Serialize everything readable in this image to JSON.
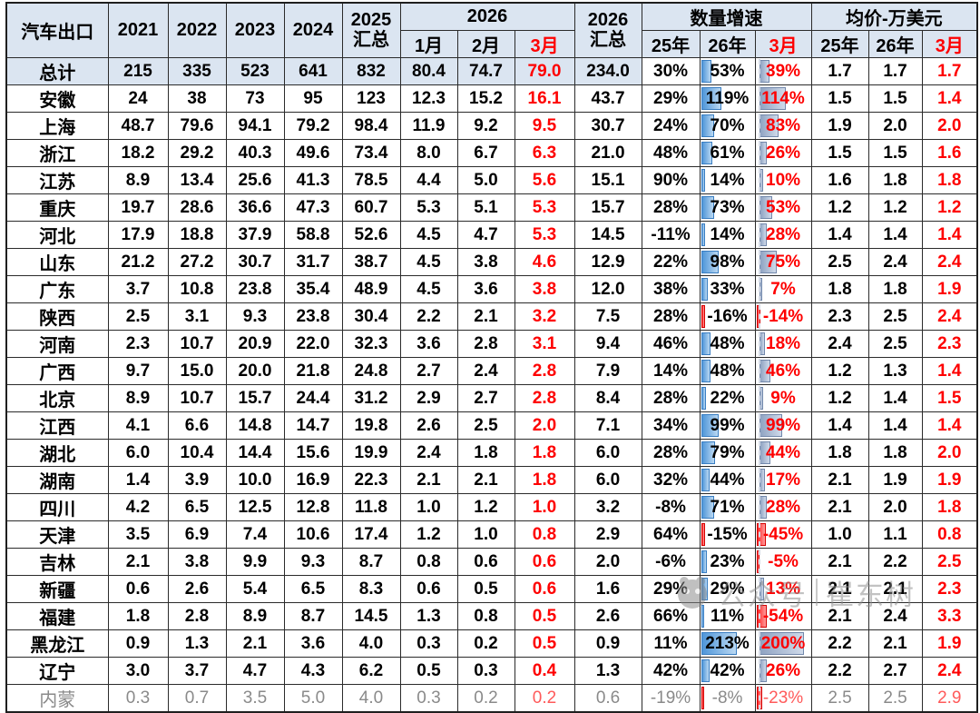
{
  "header": {
    "title": "汽车出口",
    "years": [
      "2021",
      "2022",
      "2023",
      "2024"
    ],
    "total2025": [
      "2025",
      "汇总"
    ],
    "group2026": "2026",
    "months": [
      "1月",
      "2月",
      "3月"
    ],
    "total2026": [
      "2026",
      "汇总"
    ],
    "growth_group": "数量增速",
    "growth_cols": [
      "25年",
      "26年",
      "3月"
    ],
    "price_group": "均价-万美元",
    "price_cols": [
      "25年",
      "26年",
      "3月"
    ]
  },
  "colors": {
    "header_bg": "#dbe5f1",
    "red_text": "#fe0000",
    "bar_blue": "#4f96d9",
    "bar_gray_blue": "#8fa3c2",
    "bar_negative_red": "#ff2525",
    "dim_text": "#8a8a8a"
  },
  "watermark": {
    "label1": "公众号",
    "label2": "崔东树"
  },
  "chart_data": {
    "type": "table",
    "title": "汽车出口",
    "columns": [
      "汽车出口",
      "2021",
      "2022",
      "2023",
      "2024",
      "2025汇总",
      "2026-1月",
      "2026-2月",
      "2026-3月",
      "2026汇总",
      "数量增速25年",
      "数量增速26年",
      "数量增速3月",
      "均价25年",
      "均价26年",
      "均价3月"
    ],
    "bar_columns": {
      "growth26_index": 11,
      "growth3_index": 12,
      "growth26_max": 213,
      "growth3_max": 200
    },
    "rows": [
      {
        "name": "总计",
        "highlight": true,
        "v": [
          "215",
          "335",
          "523",
          "641",
          "832",
          "80.4",
          "74.7",
          "79.0",
          "234.0",
          "30%",
          "53%",
          "39%",
          "1.7",
          "1.7",
          "1.7"
        ]
      },
      {
        "name": "安徽",
        "v": [
          "24",
          "38",
          "73",
          "95",
          "123",
          "12.3",
          "15.2",
          "16.1",
          "43.7",
          "29%",
          "119%",
          "114%",
          "1.5",
          "1.5",
          "1.4"
        ]
      },
      {
        "name": "上海",
        "v": [
          "48.7",
          "79.6",
          "94.1",
          "79.2",
          "98.4",
          "11.9",
          "9.2",
          "9.5",
          "30.7",
          "24%",
          "70%",
          "83%",
          "1.9",
          "2.0",
          "2.0"
        ]
      },
      {
        "name": "浙江",
        "v": [
          "18.2",
          "29.2",
          "40.3",
          "49.6",
          "73.4",
          "8.0",
          "6.7",
          "6.3",
          "21.0",
          "48%",
          "61%",
          "26%",
          "1.5",
          "1.5",
          "1.6"
        ]
      },
      {
        "name": "江苏",
        "v": [
          "8.9",
          "13.4",
          "25.6",
          "41.3",
          "78.5",
          "4.4",
          "5.0",
          "5.6",
          "15.1",
          "90%",
          "14%",
          "10%",
          "1.6",
          "1.8",
          "1.8"
        ]
      },
      {
        "name": "重庆",
        "v": [
          "19.7",
          "28.6",
          "36.6",
          "47.3",
          "60.7",
          "5.3",
          "5.1",
          "5.3",
          "15.7",
          "28%",
          "73%",
          "53%",
          "1.2",
          "1.2",
          "1.2"
        ]
      },
      {
        "name": "河北",
        "v": [
          "17.9",
          "18.8",
          "37.9",
          "58.8",
          "52.6",
          "4.5",
          "4.7",
          "5.3",
          "14.5",
          "-11%",
          "14%",
          "28%",
          "1.4",
          "1.4",
          "1.4"
        ]
      },
      {
        "name": "山东",
        "v": [
          "21.2",
          "27.2",
          "30.7",
          "31.7",
          "38.7",
          "4.5",
          "3.8",
          "4.6",
          "12.9",
          "22%",
          "98%",
          "75%",
          "2.5",
          "2.4",
          "2.4"
        ]
      },
      {
        "name": "广东",
        "v": [
          "3.7",
          "10.8",
          "23.8",
          "35.4",
          "48.9",
          "4.5",
          "3.6",
          "3.8",
          "12.0",
          "38%",
          "33%",
          "7%",
          "1.8",
          "1.8",
          "1.9"
        ]
      },
      {
        "name": "陕西",
        "v": [
          "2.5",
          "3.1",
          "9.3",
          "23.8",
          "30.4",
          "2.2",
          "2.1",
          "3.2",
          "7.5",
          "28%",
          "-16%",
          "-14%",
          "2.3",
          "2.5",
          "2.4"
        ]
      },
      {
        "name": "河南",
        "v": [
          "2.3",
          "10.7",
          "20.9",
          "22.0",
          "32.3",
          "3.6",
          "2.8",
          "3.1",
          "9.4",
          "46%",
          "48%",
          "18%",
          "2.4",
          "2.5",
          "2.3"
        ]
      },
      {
        "name": "广西",
        "v": [
          "9.7",
          "15.0",
          "20.0",
          "21.8",
          "24.8",
          "2.7",
          "2.4",
          "2.8",
          "7.9",
          "14%",
          "48%",
          "46%",
          "1.2",
          "1.3",
          "1.4"
        ]
      },
      {
        "name": "北京",
        "v": [
          "8.9",
          "10.7",
          "15.7",
          "24.4",
          "31.2",
          "2.9",
          "2.7",
          "2.8",
          "8.4",
          "28%",
          "22%",
          "9%",
          "1.2",
          "1.4",
          "1.5"
        ]
      },
      {
        "name": "江西",
        "v": [
          "4.1",
          "6.6",
          "14.8",
          "14.7",
          "19.8",
          "2.6",
          "2.5",
          "2.0",
          "7.1",
          "34%",
          "99%",
          "99%",
          "1.4",
          "1.4",
          "1.4"
        ]
      },
      {
        "name": "湖北",
        "v": [
          "6.0",
          "10.4",
          "14.4",
          "15.6",
          "19.9",
          "2.4",
          "1.8",
          "1.8",
          "6.0",
          "28%",
          "79%",
          "44%",
          "1.8",
          "1.8",
          "2.0"
        ]
      },
      {
        "name": "湖南",
        "v": [
          "1.4",
          "3.9",
          "10.0",
          "16.9",
          "22.3",
          "2.1",
          "2.1",
          "1.8",
          "6.0",
          "32%",
          "44%",
          "17%",
          "2.1",
          "1.9",
          "1.9"
        ]
      },
      {
        "name": "四川",
        "v": [
          "4.2",
          "6.5",
          "12.5",
          "12.8",
          "11.8",
          "1.0",
          "1.2",
          "1.0",
          "3.2",
          "-8%",
          "71%",
          "28%",
          "2.1",
          "2.0",
          "1.8"
        ]
      },
      {
        "name": "天津",
        "v": [
          "3.5",
          "6.9",
          "7.4",
          "10.6",
          "17.4",
          "1.2",
          "1.0",
          "0.8",
          "2.9",
          "64%",
          "-15%",
          "-45%",
          "1.0",
          "1.1",
          "0.8"
        ]
      },
      {
        "name": "吉林",
        "v": [
          "2.1",
          "3.8",
          "9.9",
          "9.3",
          "8.7",
          "0.8",
          "0.6",
          "0.6",
          "2.0",
          "-6%",
          "23%",
          "-5%",
          "2.1",
          "2.2",
          "2.5"
        ]
      },
      {
        "name": "新疆",
        "v": [
          "0.6",
          "2.6",
          "5.4",
          "6.5",
          "8.3",
          "0.6",
          "0.5",
          "0.6",
          "1.6",
          "29%",
          "29%",
          "13%",
          "2.1",
          "2.1",
          "2.3"
        ]
      },
      {
        "name": "福建",
        "v": [
          "1.8",
          "2.8",
          "8.9",
          "8.7",
          "14.5",
          "1.3",
          "0.8",
          "0.5",
          "2.6",
          "66%",
          "11%",
          "-54%",
          "2.1",
          "2.4",
          "3.3"
        ]
      },
      {
        "name": "黑龙江",
        "v": [
          "0.9",
          "1.3",
          "2.1",
          "3.6",
          "4.0",
          "0.3",
          "0.2",
          "0.5",
          "0.9",
          "11%",
          "213%",
          "200%",
          "2.2",
          "2.1",
          "1.9"
        ]
      },
      {
        "name": "辽宁",
        "v": [
          "3.0",
          "3.7",
          "4.7",
          "4.3",
          "6.2",
          "0.5",
          "0.3",
          "0.4",
          "1.3",
          "42%",
          "42%",
          "26%",
          "2.2",
          "2.7",
          "2.4"
        ]
      },
      {
        "name": "内蒙",
        "dim": true,
        "v": [
          "0.3",
          "0.7",
          "3.5",
          "5.0",
          "4.0",
          "0.3",
          "0.2",
          "0.2",
          "0.6",
          "-19%",
          "-8%",
          "-23%",
          "2.5",
          "2.5",
          "2.9"
        ]
      }
    ]
  }
}
